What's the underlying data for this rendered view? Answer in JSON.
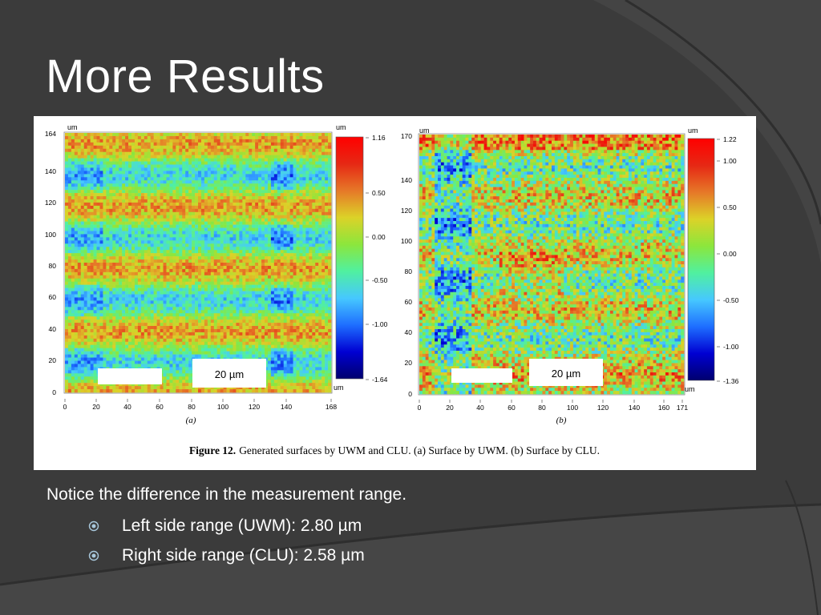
{
  "slide": {
    "title": "More Results",
    "note": "Notice the difference in the measurement range.",
    "bullets": [
      {
        "text": "Left side range (UWM): 2.80 µm"
      },
      {
        "text": "Right side range (CLU): 2.58 µm"
      }
    ]
  },
  "figure": {
    "caption_bold": "Figure 12.",
    "caption_text": "Generated surfaces by UWM and CLU. (a) Surface by UWM. (b) Surface by CLU.",
    "colormap": [
      "#00006e",
      "#0000d2",
      "#1e6eff",
      "#46c8ff",
      "#50f0a0",
      "#8ce63c",
      "#dcd228",
      "#e67828",
      "#e62814",
      "#ff0000"
    ],
    "panels": [
      {
        "label": "(a)",
        "unit": "um",
        "x_ticks": [
          "0",
          "20",
          "40",
          "60",
          "80",
          "100",
          "120",
          "140",
          "168"
        ],
        "y_ticks": [
          "0",
          "20",
          "40",
          "60",
          "80",
          "100",
          "120",
          "140",
          "164"
        ],
        "colorbar_ticks": [
          "1.16",
          "0.50",
          "0.00",
          "-0.50",
          "-1.00",
          "-1.64"
        ],
        "colorbar_unit_top": "um",
        "colorbar_unit_bottom": "um",
        "scale_bar": "20 µm"
      },
      {
        "label": "(b)",
        "unit": "um",
        "x_ticks": [
          "0",
          "20",
          "40",
          "60",
          "80",
          "100",
          "120",
          "140",
          "160",
          "171"
        ],
        "y_ticks": [
          "0",
          "20",
          "40",
          "60",
          "80",
          "100",
          "120",
          "140",
          "170"
        ],
        "colorbar_ticks": [
          "1.22",
          "1.00",
          "0.50",
          "0.00",
          "-0.50",
          "-1.00",
          "-1.36"
        ],
        "colorbar_unit_top": "um",
        "colorbar_unit_bottom": "um",
        "scale_bar": "20 µm"
      }
    ]
  }
}
